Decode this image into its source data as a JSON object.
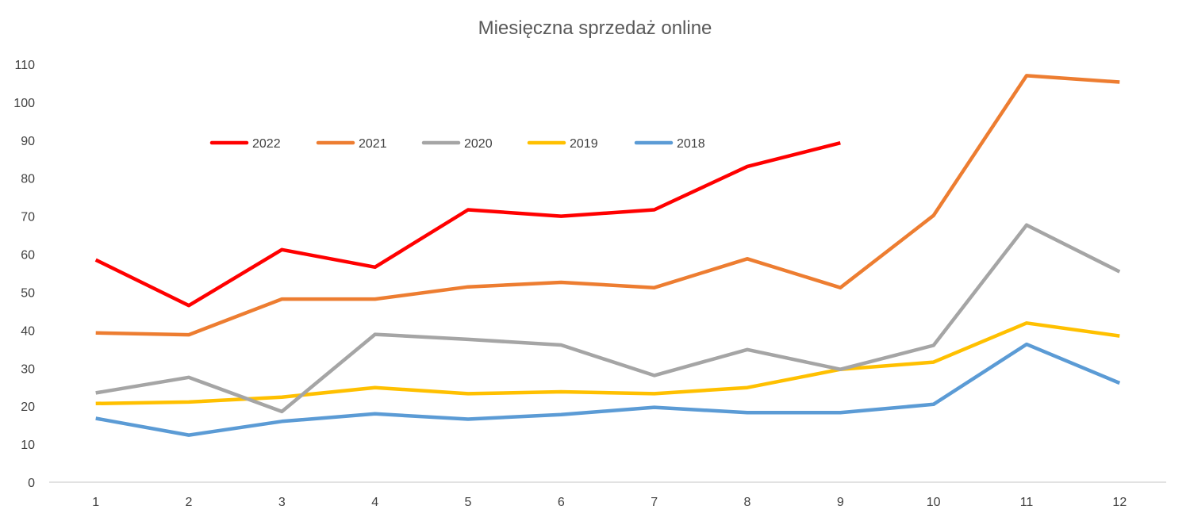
{
  "chart_data": {
    "type": "line",
    "title": "Miesięczna sprzedaż online",
    "xlabel": "",
    "ylabel": "",
    "categories": [
      "1",
      "2",
      "3",
      "4",
      "5",
      "6",
      "7",
      "8",
      "9",
      "10",
      "11",
      "12"
    ],
    "ylim": [
      0,
      110
    ],
    "yticks": [
      0,
      10,
      20,
      30,
      40,
      50,
      60,
      70,
      80,
      90,
      100,
      110
    ],
    "grid": false,
    "legend_position": "top-left",
    "series": [
      {
        "name": "2022",
        "color": "#ff0000",
        "values": [
          58.5,
          46.5,
          61.2,
          56.6,
          71.7,
          70.0,
          71.7,
          83.1,
          89.3,
          null,
          null,
          null
        ]
      },
      {
        "name": "2021",
        "color": "#ed7d31",
        "values": [
          39.3,
          38.8,
          48.2,
          48.2,
          51.4,
          52.6,
          51.2,
          58.8,
          51.2,
          70.2,
          107.0,
          105.3
        ]
      },
      {
        "name": "2020",
        "color": "#a5a5a5",
        "values": [
          23.5,
          27.6,
          18.6,
          38.9,
          37.6,
          36.1,
          28.1,
          34.9,
          29.7,
          36.0,
          67.7,
          55.4
        ]
      },
      {
        "name": "2019",
        "color": "#ffc000",
        "values": [
          20.7,
          21.1,
          22.4,
          24.9,
          23.3,
          23.8,
          23.3,
          24.9,
          29.7,
          31.6,
          41.9,
          38.5
        ]
      },
      {
        "name": "2018",
        "color": "#5b9bd5",
        "values": [
          16.8,
          12.4,
          16.0,
          18.0,
          16.6,
          17.8,
          19.7,
          18.3,
          18.3,
          20.5,
          36.3,
          26.1
        ]
      }
    ]
  }
}
